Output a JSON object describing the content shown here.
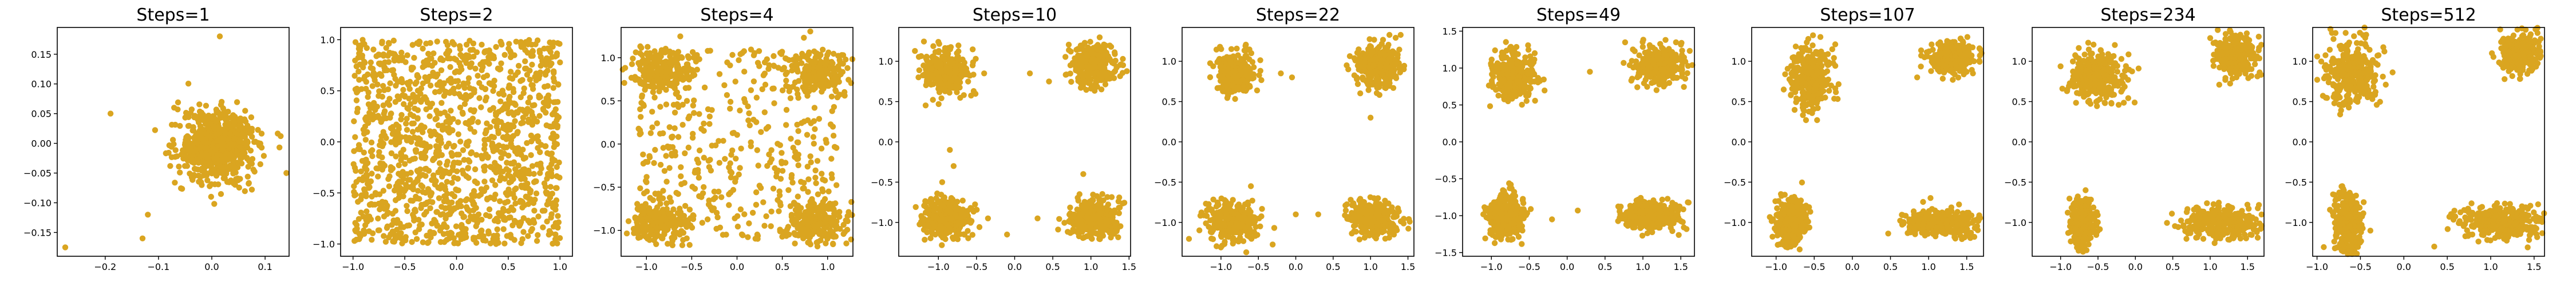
{
  "figure": {
    "point_color": "#DAA520",
    "background": "#ffffff"
  },
  "chart_data": [
    {
      "type": "scatter",
      "title": "Steps=1",
      "xlim": [
        -0.29,
        0.145
      ],
      "ylim": [
        -0.19,
        0.195
      ],
      "xticks": [
        -0.2,
        -0.1,
        0.0,
        0.1
      ],
      "xtick_labels": [
        "−0.2",
        "−0.1",
        "0.0",
        "0.1"
      ],
      "yticks": [
        -0.15,
        -0.1,
        -0.05,
        0.0,
        0.05,
        0.1,
        0.15
      ],
      "ytick_labels": [
        "−0.15",
        "−0.10",
        "−0.05",
        "0.00",
        "0.05",
        "0.10",
        "0.15"
      ],
      "clusters": [
        {
          "center": [
            0.01,
            -0.005
          ],
          "spread": [
            0.035,
            0.03
          ],
          "n": 700
        }
      ],
      "outliers": [
        [
          -0.275,
          -0.175
        ],
        [
          -0.19,
          0.05
        ],
        [
          0.015,
          0.18
        ],
        [
          0.14,
          -0.05
        ],
        [
          -0.13,
          -0.16
        ],
        [
          -0.12,
          -0.12
        ]
      ],
      "uniform": null
    },
    {
      "type": "scatter",
      "title": "Steps=2",
      "xlim": [
        -1.12,
        1.12
      ],
      "ylim": [
        -1.12,
        1.12
      ],
      "xticks": [
        -1.0,
        -0.5,
        0.0,
        0.5,
        1.0
      ],
      "xtick_labels": [
        "−1.0",
        "−0.5",
        "0.0",
        "0.5",
        "1.0"
      ],
      "yticks": [
        -1.0,
        -0.5,
        0.0,
        0.5,
        1.0
      ],
      "ytick_labels": [
        "−1.0",
        "−0.5",
        "0.0",
        "0.5",
        "1.0"
      ],
      "clusters": [],
      "outliers": [],
      "uniform": {
        "range": [
          -1.0,
          1.0
        ],
        "n": 1400
      }
    },
    {
      "type": "scatter",
      "title": "Steps=4",
      "xlim": [
        -1.28,
        1.28
      ],
      "ylim": [
        -1.3,
        1.35
      ],
      "xticks": [
        -1.0,
        -0.5,
        0.0,
        0.5,
        1.0
      ],
      "xtick_labels": [
        "−1.0",
        "−0.5",
        "0.0",
        "0.5",
        "1.0"
      ],
      "yticks": [
        -1.0,
        -0.5,
        0.0,
        0.5,
        1.0
      ],
      "ytick_labels": [
        "−1.0",
        "−0.5",
        "0.0",
        "0.5",
        "1.0"
      ],
      "clusters": [
        {
          "center": [
            -0.85,
            0.85
          ],
          "spread": [
            0.16,
            0.12
          ],
          "n": 200
        },
        {
          "center": [
            0.9,
            0.85
          ],
          "spread": [
            0.16,
            0.12
          ],
          "n": 200
        },
        {
          "center": [
            -0.85,
            -0.9
          ],
          "spread": [
            0.16,
            0.12
          ],
          "n": 200
        },
        {
          "center": [
            0.9,
            -0.9
          ],
          "spread": [
            0.16,
            0.12
          ],
          "n": 200
        }
      ],
      "outliers": [],
      "uniform": {
        "range": [
          -1.1,
          1.1
        ],
        "n": 450
      }
    },
    {
      "type": "scatter",
      "title": "Steps=10",
      "xlim": [
        -1.52,
        1.52
      ],
      "ylim": [
        -1.42,
        1.42
      ],
      "xticks": [
        -1.0,
        -0.5,
        0.0,
        0.5,
        1.0,
        1.5
      ],
      "xtick_labels": [
        "−1.0",
        "−0.5",
        "0.0",
        "0.5",
        "1.0",
        "1.5"
      ],
      "yticks": [
        -1.0,
        -0.5,
        0.0,
        0.5,
        1.0
      ],
      "ytick_labels": [
        "−1.0",
        "−0.5",
        "0.0",
        "0.5",
        "1.0"
      ],
      "clusters": [
        {
          "center": [
            -0.9,
            0.85
          ],
          "spread": [
            0.14,
            0.14
          ],
          "n": 300
        },
        {
          "center": [
            1.05,
            0.95
          ],
          "spread": [
            0.15,
            0.13
          ],
          "n": 300
        },
        {
          "center": [
            -0.9,
            -0.95
          ],
          "spread": [
            0.15,
            0.13
          ],
          "n": 300
        },
        {
          "center": [
            1.05,
            -0.95
          ],
          "spread": [
            0.16,
            0.12
          ],
          "n": 300
        }
      ],
      "outliers": [
        [
          -0.4,
          0.85
        ],
        [
          0.2,
          0.85
        ],
        [
          0.45,
          0.75
        ],
        [
          -0.1,
          -1.15
        ],
        [
          -0.35,
          -0.95
        ],
        [
          0.3,
          -0.95
        ],
        [
          -0.85,
          -0.1
        ],
        [
          -0.8,
          -0.3
        ],
        [
          -0.95,
          -0.5
        ],
        [
          0.9,
          -0.4
        ]
      ],
      "uniform": null
    },
    {
      "type": "scatter",
      "title": "Steps=22",
      "xlim": [
        -1.52,
        1.58
      ],
      "ylim": [
        -1.42,
        1.42
      ],
      "xticks": [
        -1.0,
        -0.5,
        0.0,
        0.5,
        1.0,
        1.5
      ],
      "xtick_labels": [
        "−1.0",
        "−0.5",
        "0.0",
        "0.5",
        "1.0",
        "1.5"
      ],
      "yticks": [
        -1.0,
        -0.5,
        0.0,
        0.5,
        1.0
      ],
      "ytick_labels": [
        "−1.0",
        "−0.5",
        "0.0",
        "0.5",
        "1.0"
      ],
      "clusters": [
        {
          "center": [
            -0.8,
            0.85
          ],
          "spread": [
            0.13,
            0.12
          ],
          "n": 300
        },
        {
          "center": [
            1.1,
            0.95
          ],
          "spread": [
            0.15,
            0.13
          ],
          "n": 300
        },
        {
          "center": [
            -0.85,
            -1.0
          ],
          "spread": [
            0.17,
            0.12
          ],
          "n": 300
        },
        {
          "center": [
            1.05,
            -0.95
          ],
          "spread": [
            0.17,
            0.11
          ],
          "n": 300
        }
      ],
      "outliers": [
        [
          -0.2,
          0.85
        ],
        [
          -0.05,
          0.8
        ],
        [
          1.0,
          0.3
        ],
        [
          -0.6,
          -0.55
        ],
        [
          0.3,
          -0.9
        ],
        [
          0.0,
          -0.9
        ]
      ],
      "uniform": null
    },
    {
      "type": "scatter",
      "title": "Steps=49",
      "xlim": [
        -1.38,
        1.68
      ],
      "ylim": [
        -1.55,
        1.55
      ],
      "xticks": [
        -1.0,
        -0.5,
        0.0,
        0.5,
        1.0,
        1.5
      ],
      "xtick_labels": [
        "−1.0",
        "−0.5",
        "0.0",
        "0.5",
        "1.0",
        "1.5"
      ],
      "yticks": [
        -1.5,
        -1.0,
        -0.5,
        0.0,
        0.5,
        1.0,
        1.5
      ],
      "ytick_labels": [
        "−1.5",
        "−1.0",
        "−0.5",
        "0.0",
        "0.5",
        "1.0",
        "1.5"
      ],
      "clusters": [
        {
          "center": [
            -0.7,
            0.9
          ],
          "spread": [
            0.14,
            0.15
          ],
          "n": 320
        },
        {
          "center": [
            1.2,
            1.05
          ],
          "spread": [
            0.16,
            0.12
          ],
          "n": 320
        },
        {
          "center": [
            -0.8,
            -1.0
          ],
          "spread": [
            0.12,
            0.15
          ],
          "n": 320
        },
        {
          "center": [
            1.1,
            -1.0
          ],
          "spread": [
            0.2,
            0.09
          ],
          "n": 320
        }
      ],
      "outliers": [
        [
          0.3,
          0.95
        ],
        [
          -0.2,
          -1.05
        ]
      ],
      "uniform": null
    },
    {
      "type": "scatter",
      "title": "Steps=107",
      "xlim": [
        -1.32,
        1.72
      ],
      "ylim": [
        -1.42,
        1.42
      ],
      "xticks": [
        -1.0,
        -0.5,
        0.0,
        0.5,
        1.0,
        1.5
      ],
      "xtick_labels": [
        "−1.0",
        "−0.5",
        "0.0",
        "0.5",
        "1.0",
        "1.5"
      ],
      "yticks": [
        -1.0,
        -0.5,
        0.0,
        0.5,
        1.0
      ],
      "ytick_labels": [
        "−1.0",
        "−0.5",
        "0.0",
        "0.5",
        "1.0"
      ],
      "clusters": [
        {
          "center": [
            -0.55,
            0.8
          ],
          "spread": [
            0.13,
            0.2
          ],
          "n": 320
        },
        {
          "center": [
            1.3,
            1.05
          ],
          "spread": [
            0.15,
            0.1
          ],
          "n": 320
        },
        {
          "center": [
            -0.8,
            -1.0
          ],
          "spread": [
            0.1,
            0.15
          ],
          "n": 320
        },
        {
          "center": [
            1.15,
            -1.0
          ],
          "spread": [
            0.22,
            0.08
          ],
          "n": 320
        }
      ],
      "outliers": [
        [
          0.85,
          0.8
        ],
        [
          -0.9,
          0.65
        ]
      ],
      "uniform": null
    },
    {
      "type": "scatter",
      "title": "Steps=234",
      "xlim": [
        -1.38,
        1.72
      ],
      "ylim": [
        -1.42,
        1.42
      ],
      "xticks": [
        -1.0,
        -0.5,
        0.0,
        0.5,
        1.0,
        1.5
      ],
      "xtick_labels": [
        "−1.0",
        "−0.5",
        "0.0",
        "0.5",
        "1.0",
        "1.5"
      ],
      "yticks": [
        -1.0,
        -0.5,
        0.0,
        0.5,
        1.0
      ],
      "ytick_labels": [
        "−1.0",
        "−0.5",
        "0.0",
        "0.5",
        "1.0"
      ],
      "clusters": [
        {
          "center": [
            -0.5,
            0.8
          ],
          "spread": [
            0.18,
            0.15
          ],
          "n": 320
        },
        {
          "center": [
            1.35,
            1.05
          ],
          "spread": [
            0.12,
            0.12
          ],
          "n": 320
        },
        {
          "center": [
            -0.7,
            -1.0
          ],
          "spread": [
            0.08,
            0.15
          ],
          "n": 320
        },
        {
          "center": [
            1.15,
            -1.0
          ],
          "spread": [
            0.25,
            0.1
          ],
          "n": 320
        }
      ],
      "outliers": [],
      "uniform": null
    },
    {
      "type": "scatter",
      "title": "Steps=512",
      "xlim": [
        -1.05,
        1.62
      ],
      "ylim": [
        -1.42,
        1.42
      ],
      "xticks": [
        -1.0,
        -0.5,
        0.0,
        0.5,
        1.0,
        1.5
      ],
      "xtick_labels": [
        "−1.0",
        "−0.5",
        "0.0",
        "0.5",
        "1.0",
        "1.5"
      ],
      "yticks": [
        -1.0,
        -0.5,
        0.0,
        0.5,
        1.0
      ],
      "ytick_labels": [
        "−1.0",
        "−0.5",
        "0.0",
        "0.5",
        "1.0"
      ],
      "clusters": [
        {
          "center": [
            -0.6,
            0.85
          ],
          "spread": [
            0.15,
            0.2
          ],
          "n": 320
        },
        {
          "center": [
            1.35,
            1.1
          ],
          "spread": [
            0.12,
            0.12
          ],
          "n": 320
        },
        {
          "center": [
            -0.65,
            -1.0
          ],
          "spread": [
            0.08,
            0.18
          ],
          "n": 320
        },
        {
          "center": [
            1.15,
            -1.0
          ],
          "spread": [
            0.25,
            0.1
          ],
          "n": 320
        }
      ],
      "outliers": [
        [
          0.35,
          -1.3
        ],
        [
          -0.75,
          0.55
        ]
      ],
      "uniform": null
    }
  ]
}
